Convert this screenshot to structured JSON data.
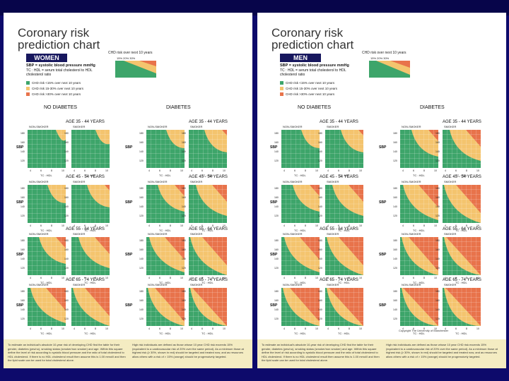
{
  "colors": {
    "green": "#3da56a",
    "yellow": "#f4c46e",
    "red": "#e8734b",
    "header_box": "#17175e"
  },
  "pages": [
    {
      "title_line1": "Coronary risk",
      "title_line2": "prediction chart",
      "sex": "WOMEN",
      "risk_header": "CHD risk over next 10 years",
      "risk_pcts": "15%      20%      30%",
      "sbp_def": "SBP = systolic blood pressure mmHg",
      "tc_def": "TC : HDL = serum total cholesterol to HDL cholesterol ratio",
      "legend": [
        "CHD risk <15% over next 10 years",
        "CHD risk 15-30% over next 10 years",
        "CHD risk >30% over next 10 years"
      ],
      "no_diabetes": "NO DIABETES",
      "diabetes": "DIABETES",
      "ages": [
        "AGE 35 - 44 YEARS",
        "AGE 45 - 54 YEARS",
        "AGE 55 - 64 YEARS",
        "AGE 65 - 74 YEARS"
      ],
      "non_smoker": "NON-SMOKER",
      "smoker": "SMOKER",
      "sbp": "SBP",
      "tc_hdl": "TC : HDL",
      "y_ticks": [
        "180",
        "160",
        "140",
        "120"
      ],
      "x_ticks": [
        "4",
        "6",
        "8",
        "10"
      ],
      "copyright": "",
      "footnote1": "To estimate an individual's absolute 10-year risk of developing CHD find the table for their gender, diabetes (yes/no), smoking status (smoker/non smoker) and age. Within this square define the level of risk according to systolic blood pressure and the ratio of total cholesterol to HDL cholesterol. If there is no HDL cholesterol result then assume this is 1.00 mmol/l and then the lipid scale can be used for total cholesterol alone.",
      "footnote2": "High risk individuals are defined as those whose 10 year CHD risk exceeds 15% (equivalent to a cardiovascular risk of 20% over the same period). As a minimum those at highest risk (≥ 30%, shown in red) should be targeted and treated now, and as resources allow others with a risk of > 15% (orange) should be progressively targeted."
    },
    {
      "title_line1": "Coronary risk",
      "title_line2": "prediction chart",
      "sex": "MEN",
      "risk_header": "CHD risk over next 10 years",
      "risk_pcts": "15%      20%      30%",
      "sbp_def": "SBP = systolic blood pressure mmHg",
      "tc_def": "TC : HDL = serum total cholesterol to HDL cholesterol ratio",
      "legend": [
        "CHD risk <15% over next 10 years",
        "CHD risk 15-30% over next 10 years",
        "CHD risk >30% over next 10 years"
      ],
      "no_diabetes": "NO DIABETES",
      "diabetes": "DIABETES",
      "ages": [
        "AGE 35 - 44 YEARS",
        "AGE 45 - 54 YEARS",
        "AGE 55 - 64 YEARS",
        "AGE 65 - 74 YEARS"
      ],
      "non_smoker": "NON-SMOKER",
      "smoker": "SMOKER",
      "sbp": "SBP",
      "tc_hdl": "TC : HDL",
      "y_ticks": [
        "180",
        "160",
        "140",
        "120"
      ],
      "x_ticks": [
        "4",
        "6",
        "8",
        "10"
      ],
      "copyright": "Copyright The University of Manchester",
      "footnote1": "To estimate an individual's absolute 10-year risk of developing CHD find the table for their gender, diabetes (yes/no), smoking status (smoker/non smoker) and age. Within this square define the level of risk according to systolic blood pressure and the ratio of total cholesterol to HDL cholesterol. If there is no HDL cholesterol result then assume this is 1.00 mmol/l and then the lipid scale can be used for total cholesterol alone.",
      "footnote2": "High risk individuals are defined as those whose 10 year CHD risk exceeds 15% (equivalent to a cardiovascular risk of 20% over the same period). As a minimum those at highest risk (≥ 30%, shown in red) should be targeted and treated now, and as resources allow others with a risk of > 15% (orange) should be progressively targeted."
    }
  ]
}
